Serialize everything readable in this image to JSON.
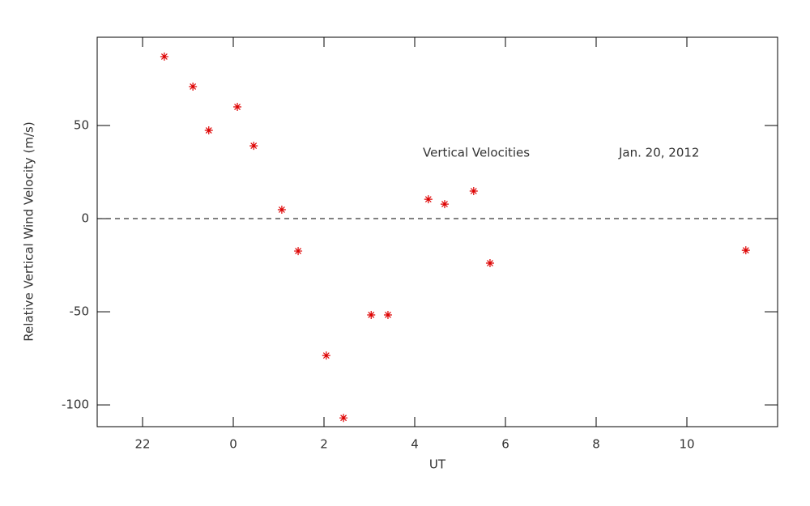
{
  "chart_data": {
    "type": "scatter",
    "xlabel": "UT",
    "ylabel": "Relative Vertical Wind Velocity (m/s)",
    "annotations": [
      "Vertical Velocities",
      "Jan. 20, 2012"
    ],
    "series": [
      {
        "name": "Vertical Velocities",
        "color": "#dd0000",
        "x": [
          -1.52,
          -0.89,
          -0.54,
          0.09,
          0.45,
          1.07,
          1.43,
          2.05,
          2.43,
          3.04,
          3.41,
          4.3,
          4.66,
          5.3,
          5.66,
          11.3
        ],
        "values": [
          87.0,
          70.9,
          47.4,
          60.0,
          39.1,
          4.8,
          -17.4,
          -73.5,
          -107.0,
          -51.7,
          -51.7,
          10.4,
          7.8,
          14.8,
          -23.9,
          -17.0
        ]
      }
    ],
    "xlim": [
      -3,
      12
    ],
    "xticks": [
      {
        "value": -2,
        "label": "22"
      },
      0,
      2,
      4,
      6,
      8,
      10
    ],
    "ylim": [
      -111.7,
      97.4
    ],
    "yticks": [
      -100,
      -50,
      0,
      50
    ],
    "reference_line": 0
  }
}
